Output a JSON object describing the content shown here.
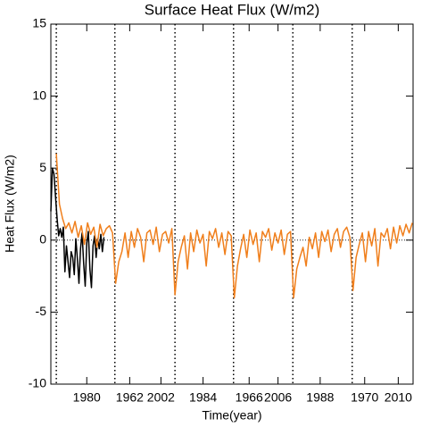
{
  "chart_data": {
    "type": "line",
    "title": "Surface Heat Flux (W/m2)",
    "x_label": "Time(year)",
    "y_label": "Heat Flux (W/m2)",
    "xlim": [
      0,
      464
    ],
    "ylim": [
      -10,
      15
    ],
    "xticks": [
      {
        "value": 46,
        "label": "1980"
      },
      {
        "value": 101,
        "label": "1962"
      },
      {
        "value": 141,
        "label": "2002"
      },
      {
        "value": 195,
        "label": "1984"
      },
      {
        "value": 254,
        "label": "1966"
      },
      {
        "value": 291,
        "label": "2006"
      },
      {
        "value": 345,
        "label": "1988"
      },
      {
        "value": 402,
        "label": "1970"
      },
      {
        "value": 445,
        "label": "2010"
      }
    ],
    "yticks": [
      -10,
      -5,
      0,
      5,
      10,
      15
    ],
    "reference_lines": {
      "x": [
        7,
        82,
        159,
        234,
        310,
        386
      ],
      "y": [
        0
      ]
    },
    "series": [
      {
        "color": "#000000",
        "x": [
          0,
          2,
          4,
          6,
          8,
          10,
          12,
          14,
          16,
          18,
          20,
          22,
          24,
          26,
          28,
          30,
          32,
          34,
          36,
          38,
          40,
          42,
          44,
          46,
          48,
          50,
          52,
          54,
          56,
          58,
          60,
          62,
          64,
          66,
          68
        ],
        "values": [
          2,
          5,
          4.6,
          3,
          1.5,
          0.3,
          0.8,
          0.2,
          0.9,
          -2.2,
          -0.4,
          -1.5,
          -2.6,
          -0.8,
          -1.2,
          -2.4,
          0.1,
          -1.3,
          -3,
          -0.6,
          0.5,
          -1.6,
          -3.2,
          -0.2,
          0.6,
          -2,
          -3.3,
          -0.4,
          0.3,
          -1.2,
          0.1,
          -0.6,
          0.4,
          -0.8,
          0.2
        ]
      },
      {
        "color": "#f07f1c",
        "x": [
          7,
          11,
          15,
          19,
          23,
          27,
          31,
          35,
          39,
          43,
          47,
          51,
          55,
          59,
          63,
          67,
          71,
          75,
          79,
          83,
          87,
          91,
          95,
          99,
          103,
          107,
          111,
          115,
          119,
          123,
          127,
          131,
          135,
          139,
          143,
          147,
          151,
          155,
          159,
          163,
          167,
          171,
          175,
          179,
          183,
          187,
          191,
          195,
          199,
          203,
          207,
          211,
          215,
          219,
          223,
          227,
          231,
          235,
          239,
          243,
          247,
          251,
          255,
          259,
          263,
          267,
          271,
          275,
          279,
          283,
          287,
          291,
          295,
          299,
          303,
          307,
          311,
          315,
          319,
          323,
          327,
          331,
          335,
          339,
          343,
          347,
          351,
          355,
          359,
          363,
          367,
          371,
          375,
          379,
          383,
          387,
          391,
          395,
          399,
          403,
          407,
          411,
          415,
          419,
          423,
          427,
          431,
          435,
          439,
          443,
          447,
          451,
          455,
          459,
          463
        ],
        "values": [
          6,
          2.5,
          1.5,
          0.8,
          1.2,
          0.5,
          1.3,
          0.2,
          1.0,
          -0.3,
          1.2,
          0.4,
          0.9,
          -0.5,
          1.1,
          0.3,
          0.8,
          1.0,
          0.5,
          -3,
          -1.5,
          -0.8,
          0.5,
          -1.2,
          0.6,
          -0.5,
          0.8,
          0.2,
          -1.5,
          0.5,
          0.7,
          -0.3,
          0.9,
          -0.8,
          0.4,
          0.6,
          -0.2,
          0.8,
          -3.8,
          -1.5,
          -0.5,
          0.3,
          -2,
          0.5,
          -0.8,
          0.7,
          -0.2,
          0.4,
          -1.8,
          0.6,
          0.1,
          0.8,
          -0.5,
          0.5,
          -1,
          0.6,
          0.3,
          -4,
          -1.8,
          -0.6,
          0.4,
          -1.2,
          0.7,
          -0.3,
          0.5,
          -1.5,
          0.6,
          0.2,
          0.8,
          -0.7,
          0.5,
          -0.2,
          0.7,
          -1,
          0.4,
          0.6,
          -4,
          -2,
          -1.2,
          -0.5,
          -1.8,
          0.2,
          -0.6,
          0.5,
          -1.2,
          0.6,
          -0.1,
          0.7,
          -0.8,
          0.4,
          0.8,
          -0.5,
          0.6,
          0.9,
          0.2,
          -3.5,
          -1.2,
          -0.3,
          0.5,
          -1.5,
          0.6,
          -0.4,
          0.8,
          -1.8,
          0.5,
          0.2,
          0.8,
          -0.6,
          0.9,
          -0.2,
          1.0,
          0.3,
          1.1,
          0.5,
          1.2
        ]
      }
    ]
  }
}
